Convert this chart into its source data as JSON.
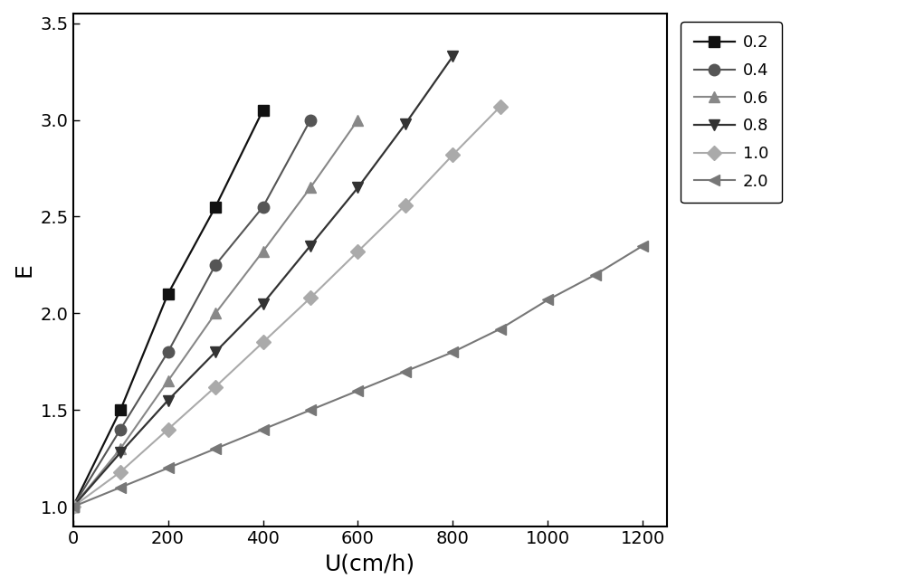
{
  "series": [
    {
      "label": "0.2",
      "x": [
        0,
        100,
        200,
        300,
        400
      ],
      "y": [
        1.0,
        1.5,
        2.1,
        2.55,
        3.05
      ],
      "color": "#111111",
      "marker": "s",
      "linestyle": "-",
      "linewidth": 1.6,
      "markersize": 9
    },
    {
      "label": "0.4",
      "x": [
        0,
        100,
        200,
        300,
        400,
        500
      ],
      "y": [
        1.0,
        1.4,
        1.8,
        2.25,
        2.55,
        3.0
      ],
      "color": "#555555",
      "marker": "o",
      "linestyle": "-",
      "linewidth": 1.5,
      "markersize": 9
    },
    {
      "label": "0.6",
      "x": [
        0,
        100,
        200,
        300,
        400,
        500,
        600
      ],
      "y": [
        1.0,
        1.3,
        1.65,
        2.0,
        2.32,
        2.65,
        3.0
      ],
      "color": "#888888",
      "marker": "^",
      "linestyle": "-",
      "linewidth": 1.5,
      "markersize": 9
    },
    {
      "label": "0.8",
      "x": [
        0,
        100,
        200,
        300,
        400,
        500,
        600,
        700,
        800
      ],
      "y": [
        1.0,
        1.28,
        1.55,
        1.8,
        2.05,
        2.35,
        2.65,
        2.98,
        3.33
      ],
      "color": "#333333",
      "marker": "v",
      "linestyle": "-",
      "linewidth": 1.6,
      "markersize": 9
    },
    {
      "label": "1.0",
      "x": [
        0,
        100,
        200,
        300,
        400,
        500,
        600,
        700,
        800,
        900
      ],
      "y": [
        1.0,
        1.18,
        1.4,
        1.62,
        1.85,
        2.08,
        2.32,
        2.56,
        2.82,
        3.07
      ],
      "color": "#aaaaaa",
      "marker": "D",
      "linestyle": "-",
      "linewidth": 1.5,
      "markersize": 8
    },
    {
      "label": "2.0",
      "x": [
        0,
        100,
        200,
        300,
        400,
        500,
        600,
        700,
        800,
        900,
        1000,
        1100,
        1200
      ],
      "y": [
        1.0,
        1.1,
        1.2,
        1.3,
        1.4,
        1.5,
        1.6,
        1.7,
        1.8,
        1.92,
        2.07,
        2.2,
        2.35
      ],
      "color": "#777777",
      "marker": "<",
      "linestyle": "-",
      "linewidth": 1.5,
      "markersize": 8
    }
  ],
  "xlabel": "U(cm/h)",
  "ylabel": "E",
  "xlim": [
    0,
    1250
  ],
  "ylim": [
    0.9,
    3.55
  ],
  "xticks": [
    0,
    200,
    400,
    600,
    800,
    1000,
    1200
  ],
  "yticks": [
    1.0,
    1.5,
    2.0,
    2.5,
    3.0,
    3.5
  ],
  "xlabel_fontsize": 18,
  "ylabel_fontsize": 18,
  "tick_fontsize": 14,
  "legend_fontsize": 13,
  "figsize": [
    10.0,
    6.5
  ],
  "dpi": 100
}
